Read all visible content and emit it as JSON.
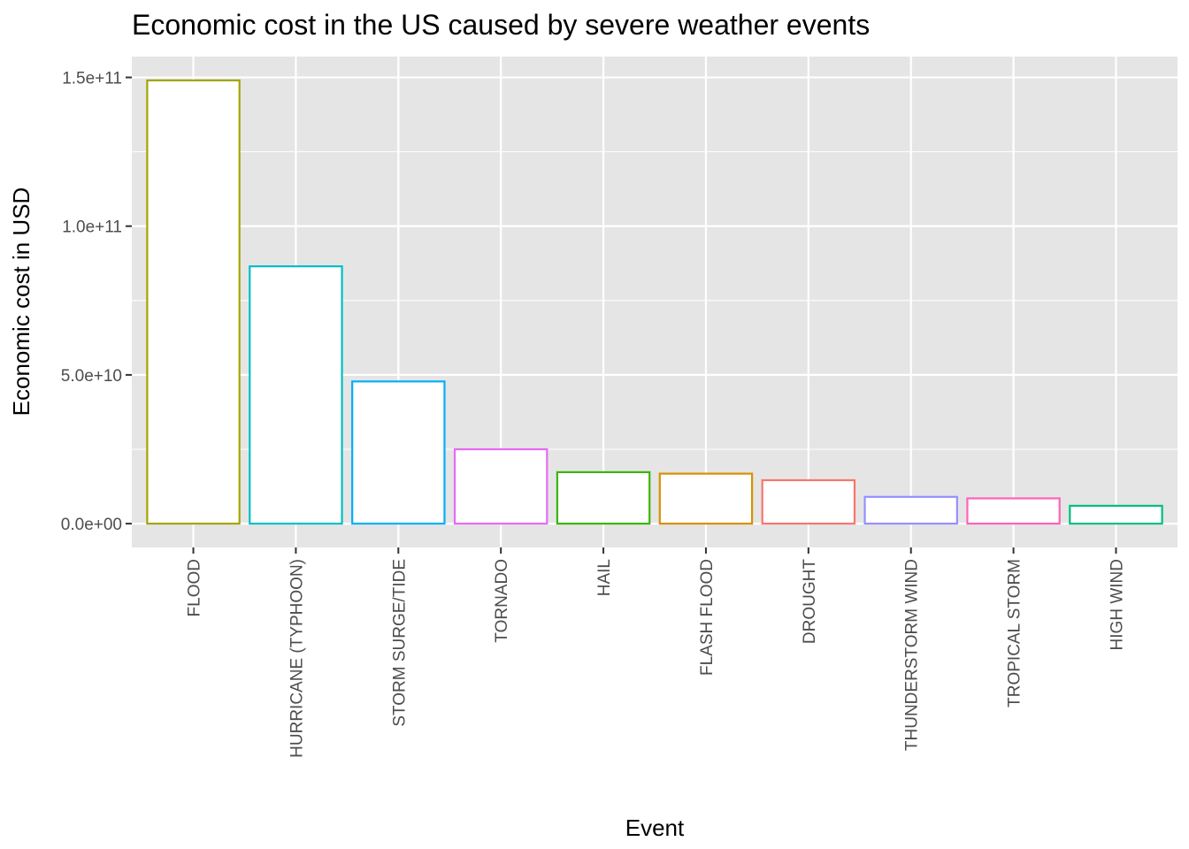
{
  "chart_data": {
    "type": "bar",
    "title": "Economic cost in the US caused by severe weather events",
    "xlabel": "Event",
    "ylabel": "Economic cost in USD",
    "categories": [
      "FLOOD",
      "HURRICANE (TYPHOON)",
      "STORM SURGE/TIDE",
      "TORNADO",
      "HAIL",
      "FLASH FLOOD",
      "DROUGHT",
      "THUNDERSTORM WIND",
      "TROPICAL STORM",
      "HIGH WIND"
    ],
    "values": [
      149000000000,
      86500000000,
      47800000000,
      25000000000,
      17300000000,
      16800000000,
      14600000000,
      9000000000,
      8500000000,
      6000000000
    ],
    "bar_colors": [
      "#A3A500",
      "#00BFC4",
      "#00B0F6",
      "#E76BF3",
      "#39B600",
      "#D89000",
      "#F8766D",
      "#9590FF",
      "#FF62BC",
      "#00BF7D"
    ],
    "ylim": [
      -8000000000,
      157000000000
    ],
    "yticks": [
      0,
      50000000000,
      100000000000,
      150000000000
    ],
    "ytick_labels": [
      "0.0e+00",
      "5.0e+10",
      "1.0e+11",
      "1.5e+11"
    ],
    "grid": true,
    "legend": "none",
    "panel_background": "#E5E5E5",
    "gridline_color": "#FFFFFF",
    "bar_fill": "#FFFFFF"
  }
}
